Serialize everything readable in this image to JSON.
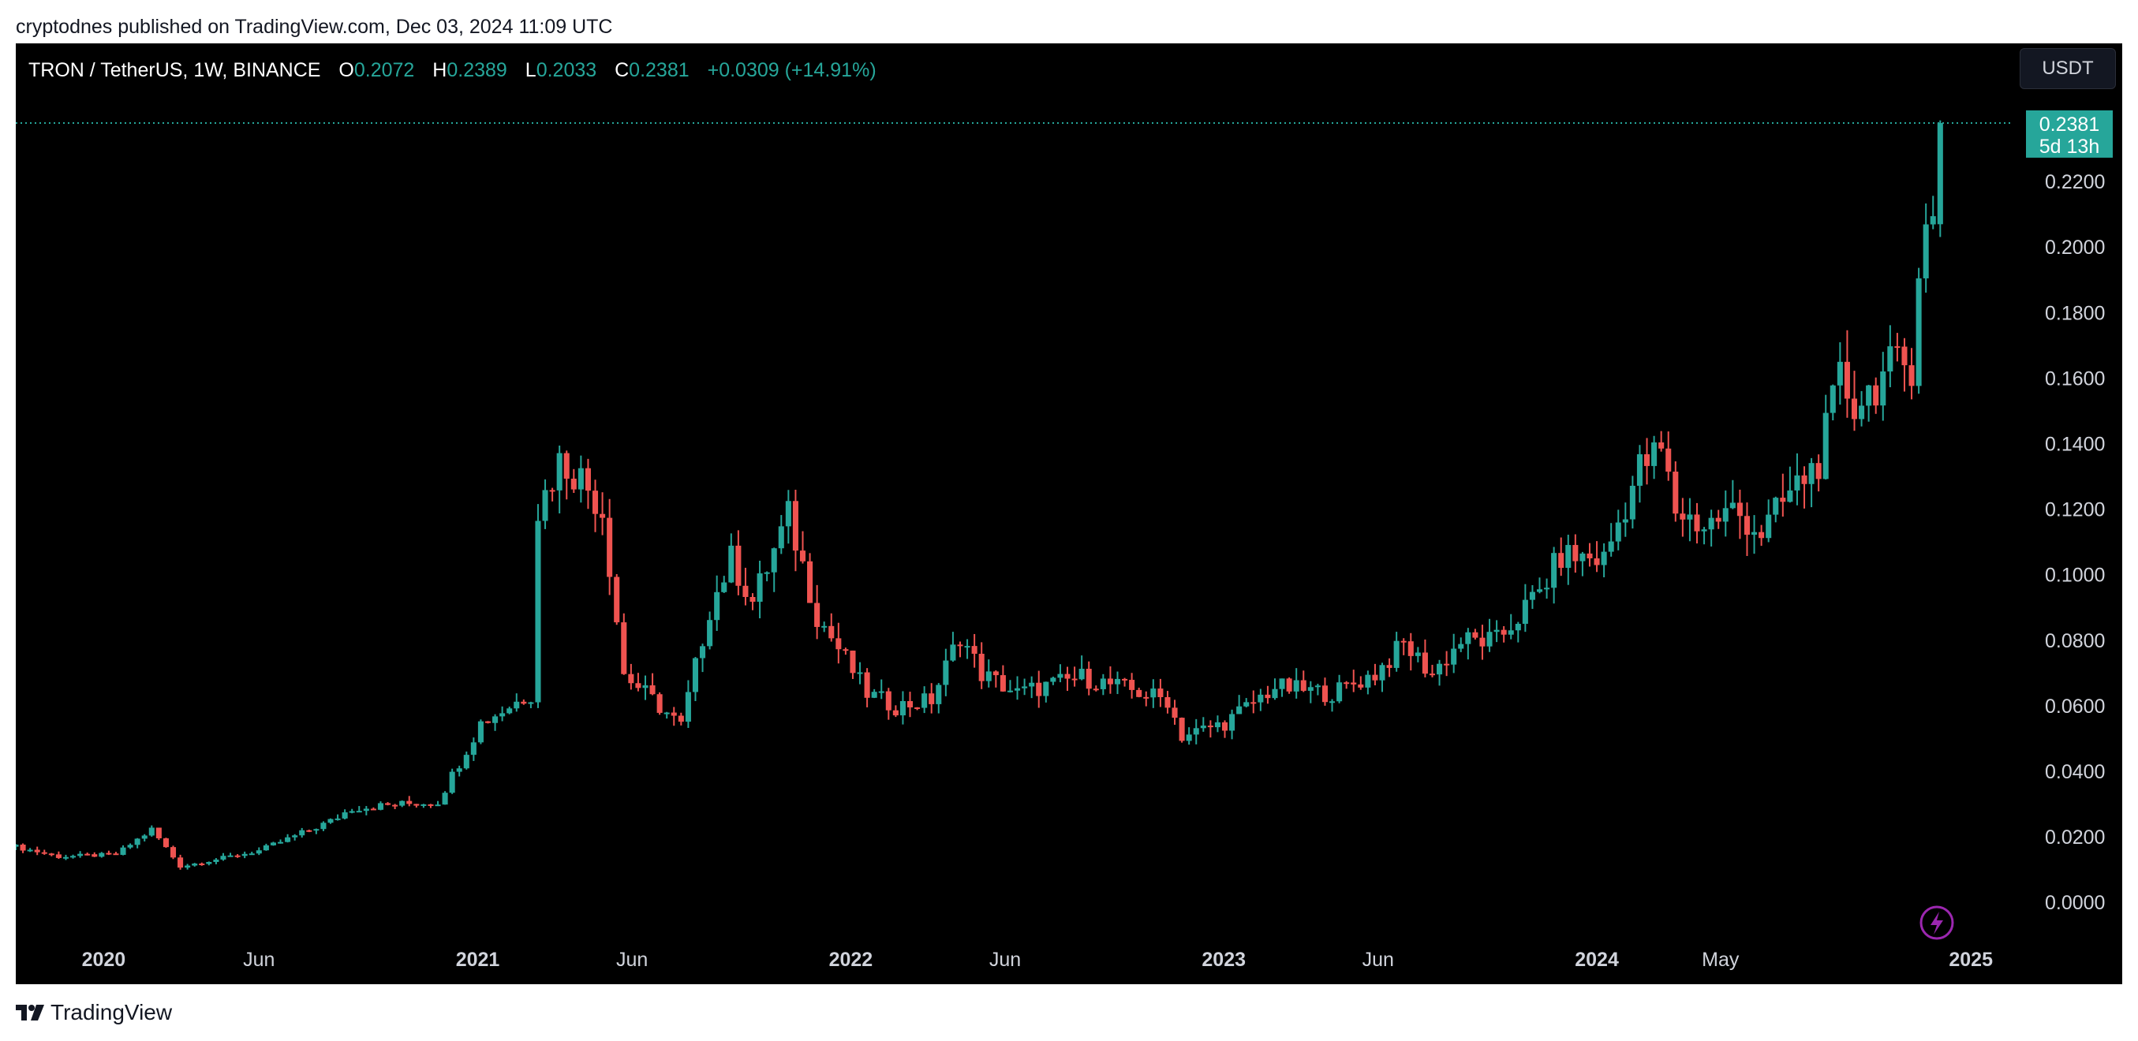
{
  "header": {
    "publish_text": "cryptodnes published on TradingView.com, Dec 03, 2024 11:09 UTC"
  },
  "legend": {
    "symbol": "TRON / TetherUS, 1W, BINANCE",
    "open_label": "O",
    "open_value": "0.2072",
    "high_label": "H",
    "high_value": "0.2389",
    "low_label": "L",
    "low_value": "0.2033",
    "close_label": "C",
    "close_value": "0.2381",
    "change": "+0.0309 (+14.91%)"
  },
  "currency_button": {
    "label": "USDT"
  },
  "price_badge": {
    "price": "0.2381",
    "countdown": "5d 13h"
  },
  "footer": {
    "brand": "TradingView"
  },
  "colors": {
    "up": "#26a69a",
    "down": "#ef5350",
    "background": "#000000",
    "axis_text": "#d1d4dc",
    "alert_icon": "#9c27b0"
  },
  "chart_data": {
    "type": "candlestick",
    "title": "TRON / TetherUS, 1W, BINANCE",
    "y_ticks": [
      "0.2200",
      "0.2000",
      "0.1800",
      "0.1600",
      "0.1400",
      "0.1200",
      "0.1000",
      "0.0800",
      "0.0600",
      "0.0400",
      "0.0200",
      "0.0000"
    ],
    "x_ticks": [
      {
        "label": "2020",
        "date": "2020-01-01",
        "bold": true
      },
      {
        "label": "Jun",
        "date": "2020-06-01",
        "bold": false
      },
      {
        "label": "2021",
        "date": "2021-01-01",
        "bold": true
      },
      {
        "label": "Jun",
        "date": "2021-06-01",
        "bold": false
      },
      {
        "label": "2022",
        "date": "2022-01-01",
        "bold": true
      },
      {
        "label": "Jun",
        "date": "2022-06-01",
        "bold": false
      },
      {
        "label": "2023",
        "date": "2023-01-01",
        "bold": true
      },
      {
        "label": "Jun",
        "date": "2023-06-01",
        "bold": false
      },
      {
        "label": "2024",
        "date": "2024-01-01",
        "bold": true
      },
      {
        "label": "May",
        "date": "2024-05-01",
        "bold": false
      },
      {
        "label": "2025",
        "date": "2025-01-01",
        "bold": true
      }
    ],
    "x_range": [
      "2019-10-07",
      "2025-02-10"
    ],
    "y_range": [
      -0.012,
      0.2624
    ],
    "last_price": 0.2381,
    "series_anchors": [
      {
        "date": "2019-10-07",
        "close": 0.0172
      },
      {
        "date": "2019-11-18",
        "close": 0.0142
      },
      {
        "date": "2020-01-13",
        "close": 0.0148
      },
      {
        "date": "2020-02-17",
        "close": 0.0225
      },
      {
        "date": "2020-03-16",
        "close": 0.0112
      },
      {
        "date": "2020-06-01",
        "close": 0.016
      },
      {
        "date": "2020-08-10",
        "close": 0.025
      },
      {
        "date": "2020-08-31",
        "close": 0.029
      },
      {
        "date": "2020-11-23",
        "close": 0.031
      },
      {
        "date": "2021-01-04",
        "close": 0.055
      },
      {
        "date": "2021-02-22",
        "close": 0.064
      },
      {
        "date": "2021-03-01",
        "close": 0.12
      },
      {
        "date": "2021-03-22",
        "close": 0.135
      },
      {
        "date": "2021-04-12",
        "close": 0.13
      },
      {
        "date": "2021-05-03",
        "close": 0.12
      },
      {
        "date": "2021-05-24",
        "close": 0.07
      },
      {
        "date": "2021-07-19",
        "close": 0.054
      },
      {
        "date": "2021-08-16",
        "close": 0.09
      },
      {
        "date": "2021-09-06",
        "close": 0.105
      },
      {
        "date": "2021-09-27",
        "close": 0.092
      },
      {
        "date": "2021-11-01",
        "close": 0.118
      },
      {
        "date": "2021-11-29",
        "close": 0.088
      },
      {
        "date": "2022-01-17",
        "close": 0.064
      },
      {
        "date": "2022-02-14",
        "close": 0.06
      },
      {
        "date": "2022-03-21",
        "close": 0.062
      },
      {
        "date": "2022-04-18",
        "close": 0.082
      },
      {
        "date": "2022-05-09",
        "close": 0.07
      },
      {
        "date": "2022-06-13",
        "close": 0.064
      },
      {
        "date": "2022-08-15",
        "close": 0.069
      },
      {
        "date": "2022-11-07",
        "close": 0.062
      },
      {
        "date": "2022-11-21",
        "close": 0.051
      },
      {
        "date": "2023-01-02",
        "close": 0.055
      },
      {
        "date": "2023-02-20",
        "close": 0.066
      },
      {
        "date": "2023-04-17",
        "close": 0.064
      },
      {
        "date": "2023-05-29",
        "close": 0.07
      },
      {
        "date": "2023-06-26",
        "close": 0.079
      },
      {
        "date": "2023-07-24",
        "close": 0.07
      },
      {
        "date": "2023-08-21",
        "close": 0.08
      },
      {
        "date": "2023-09-25",
        "close": 0.08
      },
      {
        "date": "2023-11-06",
        "close": 0.095
      },
      {
        "date": "2023-11-27",
        "close": 0.106
      },
      {
        "date": "2024-01-08",
        "close": 0.105
      },
      {
        "date": "2024-02-12",
        "close": 0.133
      },
      {
        "date": "2024-03-04",
        "close": 0.138
      },
      {
        "date": "2024-03-18",
        "close": 0.12
      },
      {
        "date": "2024-04-15",
        "close": 0.115
      },
      {
        "date": "2024-05-13",
        "close": 0.12
      },
      {
        "date": "2024-06-10",
        "close": 0.113
      },
      {
        "date": "2024-07-08",
        "close": 0.125
      },
      {
        "date": "2024-08-05",
        "close": 0.135
      },
      {
        "date": "2024-08-26",
        "close": 0.16
      },
      {
        "date": "2024-09-09",
        "close": 0.152
      },
      {
        "date": "2024-10-14",
        "close": 0.163
      },
      {
        "date": "2024-11-04",
        "close": 0.165
      },
      {
        "date": "2024-11-11",
        "close": 0.195
      },
      {
        "date": "2024-11-18",
        "close": 0.205
      },
      {
        "date": "2024-11-25",
        "close": 0.2072
      },
      {
        "date": "2024-12-02",
        "open": 0.2072,
        "high": 0.2389,
        "low": 0.2033,
        "close": 0.2381
      }
    ]
  }
}
